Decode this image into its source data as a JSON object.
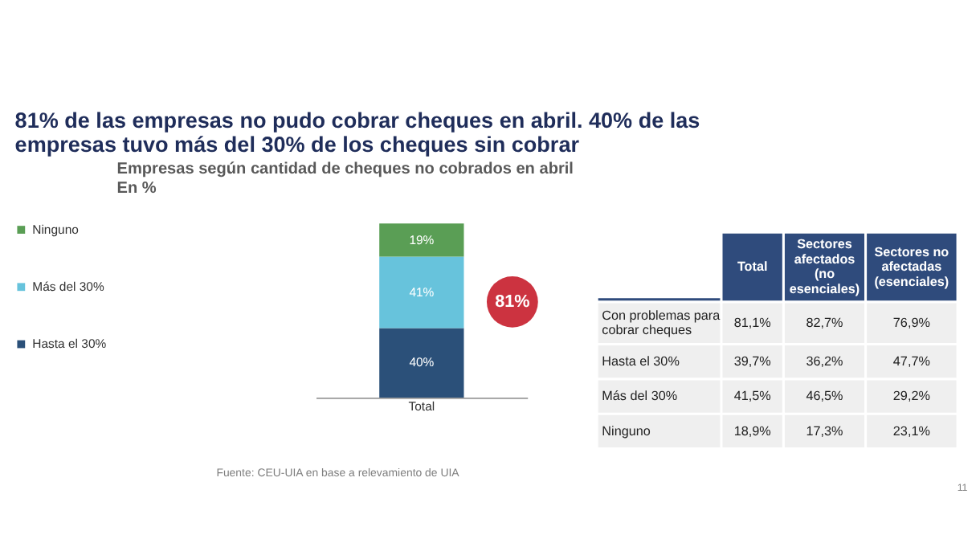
{
  "chart_data": [
    {
      "type": "bar",
      "stacked": true,
      "title": "81% de las empresas no pudo cobrar cheques en abril. 40% de las empresas tuvo más del 30% de los cheques sin cobrar",
      "subtitle": "Empresas según cantidad de cheques no cobrados en abril\nEn %",
      "categories": [
        "Total"
      ],
      "series": [
        {
          "name": "Hasta el 30%",
          "color": "#2b5079",
          "values": [
            40
          ],
          "value_labels": [
            "40%"
          ]
        },
        {
          "name": "Más del 30%",
          "color": "#67c3dc",
          "values": [
            41
          ],
          "value_labels": [
            "41%"
          ]
        },
        {
          "name": "Ninguno",
          "color": "#5a9e55",
          "values": [
            19
          ],
          "value_labels": [
            "19%"
          ]
        }
      ],
      "legend": "left",
      "tick_labels": "x",
      "annotations": [
        "81%",
        "Fuente: CEU-UIA en base a relevamiento de UIA"
      ]
    },
    {
      "type": "other",
      "categories": [
        "Total",
        "Sectores afectados (no esenciales)",
        "Sectores no afectadas (esenciales)"
      ],
      "y_categories": [
        "Con problemas para cobrar cheques",
        "Hasta el 30%",
        "Más del 30%",
        "Ninguno"
      ],
      "cell_labels": [
        [
          "81,1%",
          "82,7%",
          "76,9%"
        ],
        [
          "39,7%",
          "36,2%",
          "47,7%"
        ],
        [
          "41,5%",
          "46,5%",
          "29,2%"
        ],
        [
          "18,9%",
          "17,3%",
          "23,1%"
        ]
      ],
      "annotations": [
        "11"
      ]
    }
  ]
}
